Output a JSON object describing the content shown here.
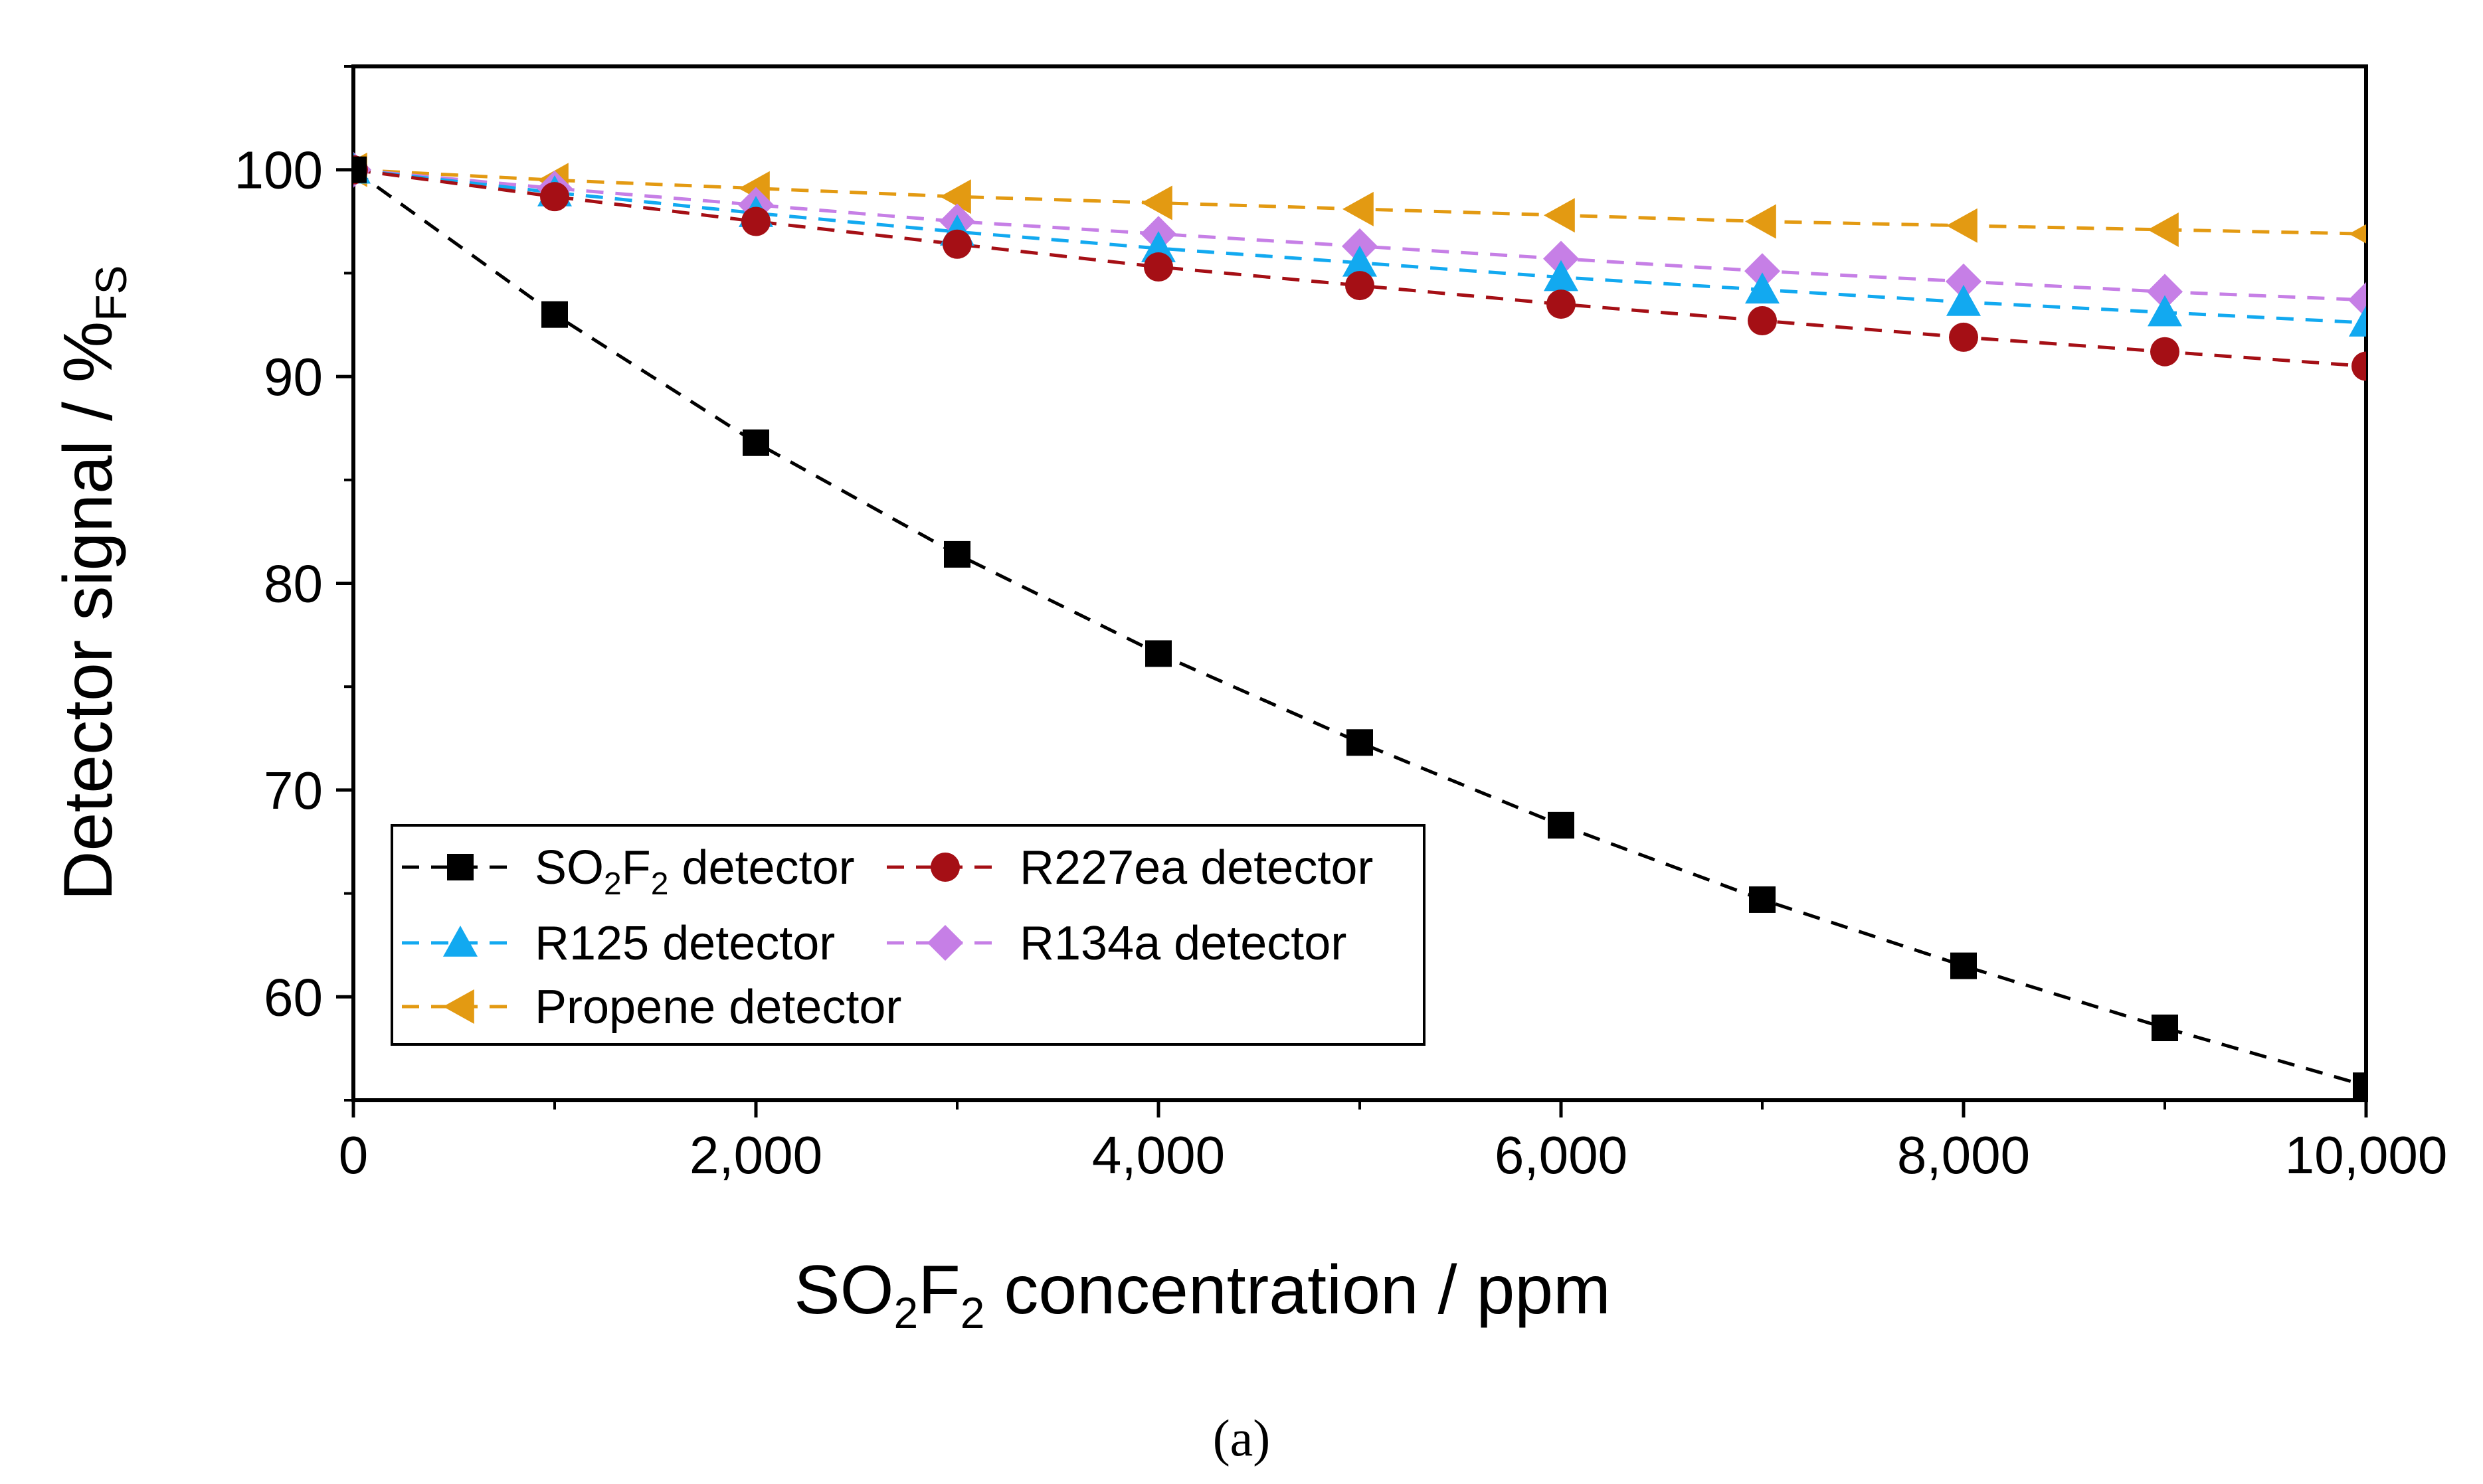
{
  "chart_data": {
    "type": "line",
    "xlabel": {
      "pre": "SO",
      "sub1": "2",
      "mid": "F",
      "sub2": "2",
      "post": " concentration / ppm"
    },
    "ylabel": {
      "main": "Detector signal / %",
      "sub": "FS"
    },
    "x_ticks": [
      0,
      2000,
      4000,
      6000,
      8000,
      10000
    ],
    "x_tick_labels": [
      "0",
      "2,000",
      "4,000",
      "6,000",
      "8,000",
      "10,000"
    ],
    "y_ticks": [
      60,
      70,
      80,
      90,
      100
    ],
    "y_tick_labels": [
      "60",
      "70",
      "80",
      "90",
      "100"
    ],
    "xlim": [
      0,
      10000
    ],
    "ylim": [
      55,
      105
    ],
    "x": [
      0,
      1000,
      2000,
      3000,
      4000,
      5000,
      6000,
      7000,
      8000,
      9000,
      10000
    ],
    "series": [
      {
        "name": "SO2F2 detector",
        "label_parts": {
          "pre": "SO",
          "sub1": "2",
          "mid": "F",
          "sub2": "2",
          "post": " detector"
        },
        "color": "#000000",
        "marker": "square",
        "values": [
          100,
          93.0,
          86.8,
          81.4,
          76.6,
          72.3,
          68.3,
          64.7,
          61.5,
          58.5,
          55.7
        ]
      },
      {
        "name": "R227ea detector",
        "color": "#a50f15",
        "marker": "circle",
        "values": [
          100,
          98.7,
          97.5,
          96.4,
          95.3,
          94.4,
          93.5,
          92.7,
          91.9,
          91.2,
          90.5
        ]
      },
      {
        "name": "R125 detector",
        "color": "#12a9f0",
        "marker": "triangle-up",
        "values": [
          100,
          98.9,
          97.9,
          97.0,
          96.2,
          95.5,
          94.8,
          94.2,
          93.6,
          93.1,
          92.6
        ]
      },
      {
        "name": "R134a detector",
        "color": "#c67fe6",
        "marker": "diamond",
        "values": [
          100,
          99.1,
          98.3,
          97.5,
          96.9,
          96.3,
          95.7,
          95.1,
          94.6,
          94.1,
          93.7
        ]
      },
      {
        "name": "Propene detector",
        "color": "#e39a12",
        "marker": "triangle-left",
        "values": [
          100,
          99.5,
          99.1,
          98.7,
          98.4,
          98.1,
          97.8,
          97.5,
          97.3,
          97.1,
          96.9
        ]
      }
    ],
    "legend_position": "bottom-left",
    "caption": "(a)"
  }
}
